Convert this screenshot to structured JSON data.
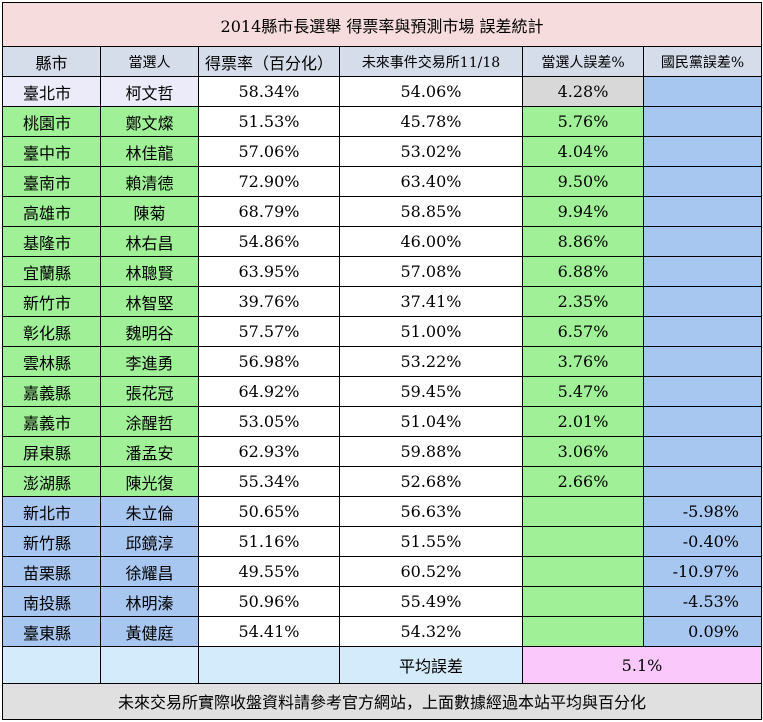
{
  "title": "2014縣市長選舉  得票率與預測市場   誤差統計",
  "headers": {
    "county": "縣市",
    "winner": "當選人",
    "vote_rate": "得票率（百分化）",
    "market": "未來事件交易所11/18",
    "winner_err": "當選人誤差%",
    "kmt_err": "國民黨誤差%"
  },
  "rows": [
    {
      "county": "臺北市",
      "winner": "柯文哲",
      "vote": "58.34%",
      "market": "54.06%",
      "winner_err": "4.28%",
      "kmt_err": ""
    },
    {
      "county": "桃園市",
      "winner": "鄭文燦",
      "vote": "51.53%",
      "market": "45.78%",
      "winner_err": "5.76%",
      "kmt_err": ""
    },
    {
      "county": "臺中市",
      "winner": "林佳龍",
      "vote": "57.06%",
      "market": "53.02%",
      "winner_err": "4.04%",
      "kmt_err": ""
    },
    {
      "county": "臺南市",
      "winner": "賴清德",
      "vote": "72.90%",
      "market": "63.40%",
      "winner_err": "9.50%",
      "kmt_err": ""
    },
    {
      "county": "高雄市",
      "winner": "陳菊",
      "vote": "68.79%",
      "market": "58.85%",
      "winner_err": "9.94%",
      "kmt_err": ""
    },
    {
      "county": "基隆市",
      "winner": "林右昌",
      "vote": "54.86%",
      "market": "46.00%",
      "winner_err": "8.86%",
      "kmt_err": ""
    },
    {
      "county": "宜蘭縣",
      "winner": "林聰賢",
      "vote": "63.95%",
      "market": "57.08%",
      "winner_err": "6.88%",
      "kmt_err": ""
    },
    {
      "county": "新竹市",
      "winner": "林智堅",
      "vote": "39.76%",
      "market": "37.41%",
      "winner_err": "2.35%",
      "kmt_err": ""
    },
    {
      "county": "彰化縣",
      "winner": "魏明谷",
      "vote": "57.57%",
      "market": "51.00%",
      "winner_err": "6.57%",
      "kmt_err": ""
    },
    {
      "county": "雲林縣",
      "winner": "李進勇",
      "vote": "56.98%",
      "market": "53.22%",
      "winner_err": "3.76%",
      "kmt_err": ""
    },
    {
      "county": "嘉義縣",
      "winner": "張花冠",
      "vote": "64.92%",
      "market": "59.45%",
      "winner_err": "5.47%",
      "kmt_err": ""
    },
    {
      "county": "嘉義市",
      "winner": "涂醒哲",
      "vote": "53.05%",
      "market": "51.04%",
      "winner_err": "2.01%",
      "kmt_err": ""
    },
    {
      "county": "屏東縣",
      "winner": "潘孟安",
      "vote": "62.93%",
      "market": "59.88%",
      "winner_err": "3.06%",
      "kmt_err": ""
    },
    {
      "county": "澎湖縣",
      "winner": "陳光復",
      "vote": "55.34%",
      "market": "52.68%",
      "winner_err": "2.66%",
      "kmt_err": ""
    },
    {
      "county": "新北市",
      "winner": "朱立倫",
      "vote": "50.65%",
      "market": "56.63%",
      "winner_err": "",
      "kmt_err": "-5.98%"
    },
    {
      "county": "新竹縣",
      "winner": "邱鏡淳",
      "vote": "51.16%",
      "market": "51.55%",
      "winner_err": "",
      "kmt_err": "-0.40%"
    },
    {
      "county": "苗栗縣",
      "winner": "徐耀昌",
      "vote": "49.55%",
      "market": "60.52%",
      "winner_err": "",
      "kmt_err": "-10.97%"
    },
    {
      "county": "南投縣",
      "winner": "林明溱",
      "vote": "50.96%",
      "market": "55.49%",
      "winner_err": "",
      "kmt_err": "-4.53%"
    },
    {
      "county": "臺東縣",
      "winner": "黃健庭",
      "vote": "54.41%",
      "market": "54.32%",
      "winner_err": "",
      "kmt_err": "0.09%"
    }
  ],
  "summary": {
    "label": "平均誤差",
    "value": "5.1%"
  },
  "footer": "未來交易所實際收盤資料請參考官方網站，上面數據經過本站平均與百分化",
  "colors": {
    "title_bg": "#f6dcdc",
    "header_bg": "#d6ddea",
    "dpp_bg": "#9ff096",
    "kmt_bg": "#a7c6f0",
    "independent_bg": "#ecebfa",
    "avg_bg": "#fbc8fb"
  }
}
